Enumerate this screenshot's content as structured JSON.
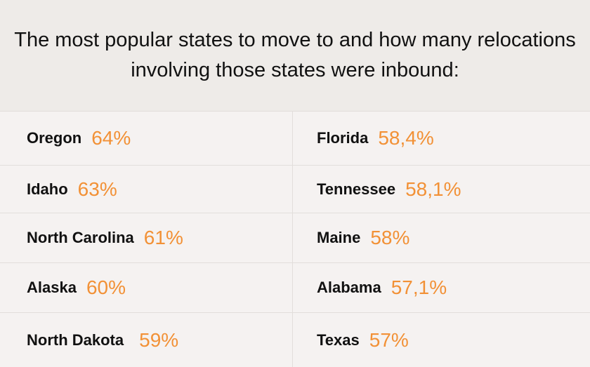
{
  "title": "The most popular states to move to and how many relocations involving those states were inbound:",
  "left": [
    {
      "state": "Oregon",
      "pct": "64%"
    },
    {
      "state": "Idaho",
      "pct": "63%"
    },
    {
      "state": "North Carolina",
      "pct": "61%"
    },
    {
      "state": "Alaska",
      "pct": "60%"
    },
    {
      "state": "North Dakota",
      "pct": "59%"
    }
  ],
  "right": [
    {
      "state": "Florida",
      "pct": "58,4%"
    },
    {
      "state": "Tennessee",
      "pct": "58,1%"
    },
    {
      "state": "Maine",
      "pct": "58%"
    },
    {
      "state": "Alabama",
      "pct": "57,1%"
    },
    {
      "state": "Texas",
      "pct": "57%"
    }
  ],
  "colors": {
    "accent": "#f29136",
    "text": "#111111",
    "header_bg": "#eeebe8",
    "body_bg": "#f5f2f1"
  }
}
